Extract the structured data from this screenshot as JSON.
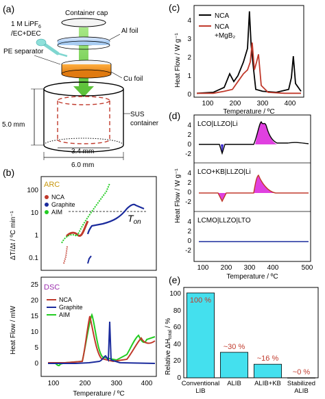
{
  "panels": {
    "a": {
      "label": "(a)",
      "container_cap": "Container cap",
      "electrolyte_l1": "1 M LiPF",
      "electrolyte_sub": "6",
      "electrolyte_l2": "/EC+DEC",
      "al_foil": "Al foil",
      "pe_separator": "PE separator",
      "cu_foil": "Cu foil",
      "sus_l1": "SUS",
      "sus_l2": "container",
      "height_dim": "5.0 mm",
      "inner_dim": "3.4 mm",
      "outer_dim": "6.0 mm"
    },
    "b": {
      "label": "(b)",
      "arc_tag": "ARC",
      "dsc_tag": "DSC",
      "arc_ylabel": "ΔT/Δt / ºC min⁻¹",
      "dsc_ylabel": "Heat Flow / mW",
      "xlabel": "Temperature / ºC",
      "ton_label": "T",
      "ton_sub": "on",
      "legend": [
        "NCA",
        "Graphite",
        "AIM"
      ],
      "arc_yticks": [
        "100",
        "10",
        "1",
        "0.1"
      ],
      "dsc_yticks": [
        "0",
        "5",
        "10",
        "15",
        "20",
        "25"
      ],
      "xticks": [
        "100",
        "200",
        "300",
        "400"
      ]
    },
    "c": {
      "label": "(c)",
      "ylabel": "Heat Flow / W g⁻¹",
      "xlabel": "Temperature / ºC",
      "yticks": [
        "0",
        "1",
        "2",
        "3",
        "4"
      ],
      "xticks": [
        "100",
        "200",
        "300",
        "400"
      ],
      "legend1": "NCA",
      "legend2_l1": "NCA",
      "legend2_l2": "+MgB₂"
    },
    "d": {
      "label": "(d)",
      "ylabel": "Heat Flow / W g⁻¹",
      "xlabel": "Temperature / ºC",
      "sub1": "LCO|LLZO|Li",
      "sub2": "LCO+KB|LLZO|Li",
      "sub3": "LCMO|LLZO|LTO",
      "yticks1": [
        "4",
        "2",
        "0",
        "-2"
      ],
      "yticks2": [
        "4",
        "2",
        "0",
        "-2"
      ],
      "yticks3": [
        "4",
        "2",
        "0",
        "-2"
      ],
      "xticks": [
        "100",
        "200",
        "300",
        "400",
        "500"
      ]
    },
    "e": {
      "label": "(e)",
      "ylabel_pre": "Relative ΔH",
      "ylabel_sub": "total",
      "ylabel_post": " / %",
      "yticks": [
        "0",
        "20",
        "40",
        "60",
        "80",
        "100"
      ]
    }
  },
  "colors": {
    "nca": "#c0392b",
    "graphite": "#1a2a9c",
    "aim": "#22cc22",
    "bar": "#44e0ee",
    "annot": "#c0392b",
    "ton_line": "#000000",
    "magenta": "#e040e0"
  },
  "chart_data": [
    {
      "type": "bar",
      "panel": "e",
      "categories": [
        "Conventional LIB",
        "ALIB",
        "ALIB+KB",
        "Stabilized ALIB"
      ],
      "values": [
        100,
        30,
        16,
        0
      ],
      "value_labels": [
        "100 %",
        "~30 %",
        "~16 %",
        "~0 %"
      ],
      "ylim": [
        0,
        100
      ]
    },
    {
      "type": "line",
      "panel": "c",
      "xlim": [
        50,
        450
      ],
      "ylim": [
        -0.2,
        4.5
      ],
      "series": [
        {
          "name": "NCA",
          "x": [
            60,
            120,
            160,
            180,
            195,
            210,
            230,
            245,
            252,
            258,
            265,
            275,
            300,
            350,
            395,
            405,
            412,
            420,
            440
          ],
          "y": [
            0,
            0.05,
            0.3,
            1.0,
            0.6,
            0.9,
            1.6,
            2.3,
            4.2,
            2.5,
            1.5,
            0.2,
            0.1,
            0.05,
            0.2,
            0.8,
            1.9,
            0.5,
            0.1
          ]
        },
        {
          "name": "NCA +MgB₂",
          "x": [
            60,
            120,
            160,
            190,
            210,
            230,
            245,
            255,
            262,
            270,
            278,
            285,
            295,
            320,
            380,
            440
          ],
          "y": [
            0,
            0,
            0.1,
            0.2,
            0.6,
            1.0,
            1.2,
            1.6,
            2.6,
            1.2,
            1.6,
            2.0,
            0.4,
            0.05,
            0,
            0
          ]
        }
      ]
    }
  ]
}
